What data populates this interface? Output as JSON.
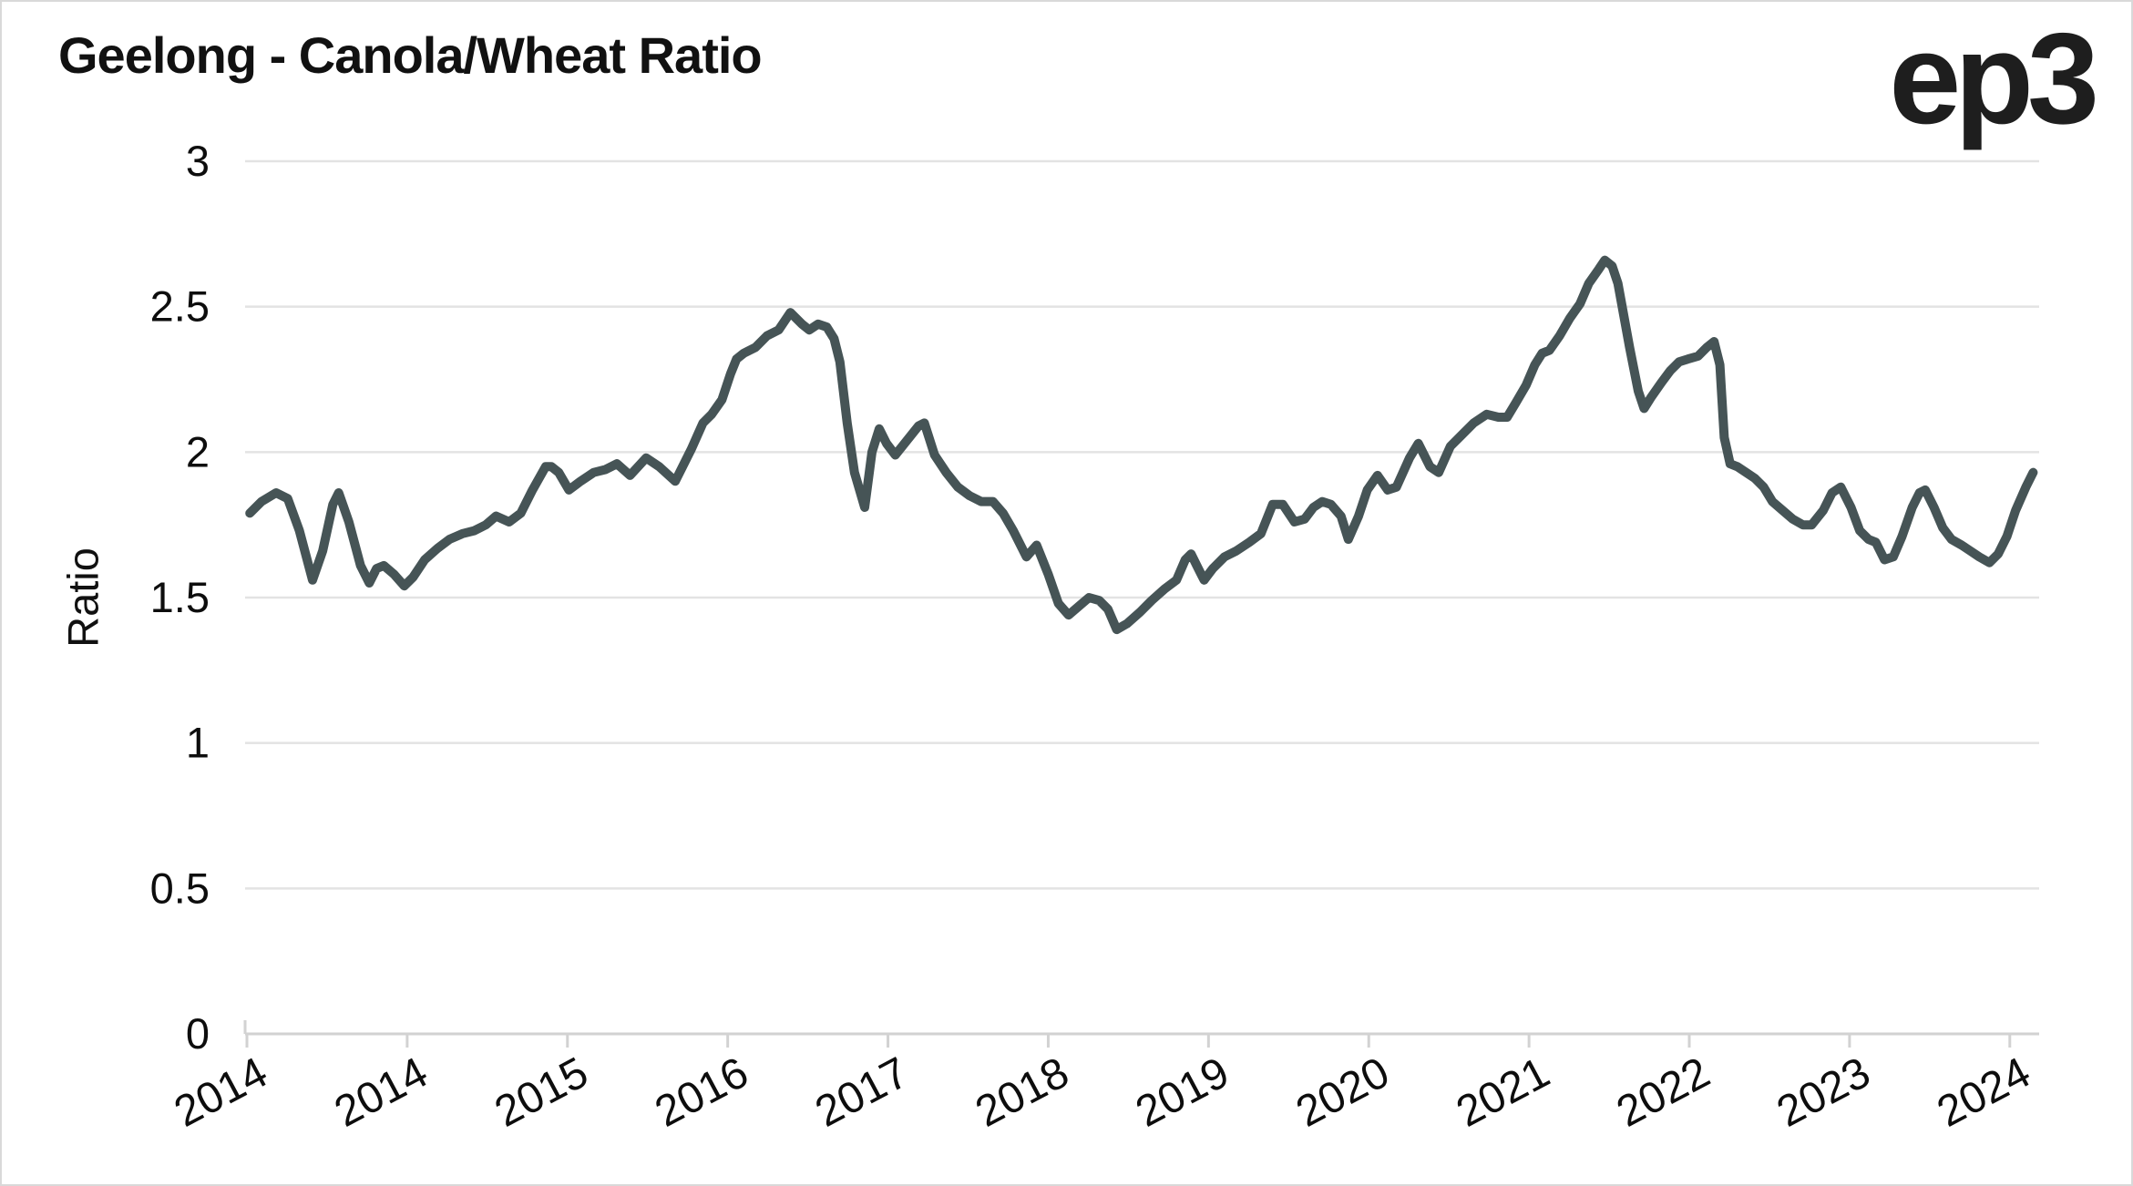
{
  "header": {
    "title": "Geelong - Canola/Wheat Ratio",
    "logo": "ep3"
  },
  "colors": {
    "background": "#ffffff",
    "frame_border": "#d9d9d9",
    "title_text": "#111111",
    "tick_text": "#0d0d0d",
    "gridline": "#e3e3e3",
    "axis_line": "#d2d2d2",
    "line": "#465456"
  },
  "chart_data": {
    "type": "line",
    "title": "Geelong - Canola/Wheat Ratio",
    "xlabel": "",
    "ylabel": "Ratio",
    "ylim": [
      0,
      3
    ],
    "grid": true,
    "legend": false,
    "line_color": "#465456",
    "line_width": 10,
    "y_ticks": [
      0,
      0.5,
      1,
      1.5,
      2,
      2.5,
      3
    ],
    "y_tick_labels": [
      "0",
      "0.5",
      "1",
      "1.5",
      "2",
      "2.5",
      "3"
    ],
    "x_tick_positions": [
      0,
      11,
      22,
      33,
      44,
      55,
      66,
      77,
      88,
      99,
      110,
      121
    ],
    "x_tick_labels": [
      "2014",
      "2014",
      "2015",
      "2016",
      "2017",
      "2018",
      "2019",
      "2020",
      "2021",
      "2022",
      "2023",
      "2024"
    ],
    "x_unit": "months from start of series (monthly ratio samples)",
    "series": [
      {
        "name": "Canola/Wheat Ratio",
        "points": [
          [
            0.2,
            1.79
          ],
          [
            1.0,
            1.83
          ],
          [
            2.0,
            1.86
          ],
          [
            2.8,
            1.84
          ],
          [
            3.6,
            1.73
          ],
          [
            4.5,
            1.56
          ],
          [
            5.2,
            1.66
          ],
          [
            5.9,
            1.82
          ],
          [
            6.3,
            1.86
          ],
          [
            7.0,
            1.76
          ],
          [
            7.8,
            1.61
          ],
          [
            8.4,
            1.55
          ],
          [
            8.9,
            1.6
          ],
          [
            9.4,
            1.61
          ],
          [
            10.1,
            1.58
          ],
          [
            10.8,
            1.54
          ],
          [
            11.4,
            1.57
          ],
          [
            12.2,
            1.63
          ],
          [
            13.1,
            1.67
          ],
          [
            13.9,
            1.7
          ],
          [
            14.8,
            1.72
          ],
          [
            15.6,
            1.73
          ],
          [
            16.4,
            1.75
          ],
          [
            17.1,
            1.78
          ],
          [
            18.0,
            1.76
          ],
          [
            18.8,
            1.79
          ],
          [
            19.6,
            1.87
          ],
          [
            20.5,
            1.95
          ],
          [
            20.9,
            1.95
          ],
          [
            21.4,
            1.93
          ],
          [
            22.1,
            1.87
          ],
          [
            22.9,
            1.9
          ],
          [
            23.8,
            1.93
          ],
          [
            24.6,
            1.94
          ],
          [
            25.4,
            1.96
          ],
          [
            26.3,
            1.92
          ],
          [
            27.4,
            1.98
          ],
          [
            28.3,
            1.95
          ],
          [
            29.4,
            1.9
          ],
          [
            30.5,
            2.01
          ],
          [
            31.3,
            2.1
          ],
          [
            31.9,
            2.13
          ],
          [
            32.6,
            2.18
          ],
          [
            33.2,
            2.27
          ],
          [
            33.6,
            2.32
          ],
          [
            34.1,
            2.34
          ],
          [
            34.9,
            2.36
          ],
          [
            35.7,
            2.4
          ],
          [
            36.5,
            2.42
          ],
          [
            37.3,
            2.48
          ],
          [
            38.1,
            2.44
          ],
          [
            38.6,
            2.42
          ],
          [
            39.2,
            2.44
          ],
          [
            39.8,
            2.43
          ],
          [
            40.3,
            2.39
          ],
          [
            40.7,
            2.31
          ],
          [
            41.2,
            2.1
          ],
          [
            41.7,
            1.93
          ],
          [
            42.4,
            1.81
          ],
          [
            42.9,
            2.0
          ],
          [
            43.4,
            2.08
          ],
          [
            43.9,
            2.03
          ],
          [
            44.5,
            1.99
          ],
          [
            45.3,
            2.04
          ],
          [
            46.1,
            2.09
          ],
          [
            46.5,
            2.1
          ],
          [
            47.2,
            1.99
          ],
          [
            48.0,
            1.93
          ],
          [
            48.8,
            1.88
          ],
          [
            49.6,
            1.85
          ],
          [
            50.4,
            1.83
          ],
          [
            51.2,
            1.83
          ],
          [
            51.9,
            1.79
          ],
          [
            52.6,
            1.73
          ],
          [
            53.5,
            1.64
          ],
          [
            54.2,
            1.68
          ],
          [
            55.0,
            1.58
          ],
          [
            55.7,
            1.48
          ],
          [
            56.4,
            1.44
          ],
          [
            57.1,
            1.47
          ],
          [
            57.8,
            1.5
          ],
          [
            58.5,
            1.49
          ],
          [
            59.1,
            1.46
          ],
          [
            59.7,
            1.39
          ],
          [
            60.4,
            1.41
          ],
          [
            61.3,
            1.45
          ],
          [
            62.1,
            1.49
          ],
          [
            63.0,
            1.53
          ],
          [
            63.8,
            1.56
          ],
          [
            64.4,
            1.63
          ],
          [
            64.8,
            1.65
          ],
          [
            65.3,
            1.6
          ],
          [
            65.7,
            1.56
          ],
          [
            66.3,
            1.6
          ],
          [
            67.1,
            1.64
          ],
          [
            67.9,
            1.66
          ],
          [
            68.8,
            1.69
          ],
          [
            69.6,
            1.72
          ],
          [
            70.4,
            1.82
          ],
          [
            71.1,
            1.82
          ],
          [
            71.9,
            1.76
          ],
          [
            72.6,
            1.77
          ],
          [
            73.2,
            1.81
          ],
          [
            73.8,
            1.83
          ],
          [
            74.4,
            1.82
          ],
          [
            75.1,
            1.78
          ],
          [
            75.6,
            1.7
          ],
          [
            76.3,
            1.78
          ],
          [
            76.9,
            1.87
          ],
          [
            77.6,
            1.92
          ],
          [
            78.3,
            1.87
          ],
          [
            78.9,
            1.88
          ],
          [
            79.8,
            1.98
          ],
          [
            80.4,
            2.03
          ],
          [
            81.2,
            1.95
          ],
          [
            81.8,
            1.93
          ],
          [
            82.6,
            2.02
          ],
          [
            83.4,
            2.06
          ],
          [
            84.2,
            2.1
          ],
          [
            85.1,
            2.13
          ],
          [
            85.9,
            2.12
          ],
          [
            86.5,
            2.12
          ],
          [
            87.1,
            2.17
          ],
          [
            87.8,
            2.23
          ],
          [
            88.4,
            2.3
          ],
          [
            88.9,
            2.34
          ],
          [
            89.4,
            2.35
          ],
          [
            90.1,
            2.4
          ],
          [
            90.8,
            2.46
          ],
          [
            91.5,
            2.51
          ],
          [
            92.1,
            2.58
          ],
          [
            92.8,
            2.63
          ],
          [
            93.2,
            2.66
          ],
          [
            93.7,
            2.64
          ],
          [
            94.1,
            2.58
          ],
          [
            94.9,
            2.36
          ],
          [
            95.5,
            2.21
          ],
          [
            95.9,
            2.15
          ],
          [
            96.4,
            2.19
          ],
          [
            97.1,
            2.24
          ],
          [
            97.7,
            2.28
          ],
          [
            98.3,
            2.31
          ],
          [
            98.9,
            2.32
          ],
          [
            99.6,
            2.33
          ],
          [
            100.2,
            2.36
          ],
          [
            100.7,
            2.38
          ],
          [
            101.1,
            2.3
          ],
          [
            101.4,
            2.05
          ],
          [
            101.8,
            1.96
          ],
          [
            102.3,
            1.95
          ],
          [
            102.9,
            1.93
          ],
          [
            103.5,
            1.91
          ],
          [
            104.1,
            1.88
          ],
          [
            104.7,
            1.83
          ],
          [
            105.4,
            1.8
          ],
          [
            106.1,
            1.77
          ],
          [
            106.8,
            1.75
          ],
          [
            107.4,
            1.75
          ],
          [
            108.2,
            1.8
          ],
          [
            108.8,
            1.86
          ],
          [
            109.4,
            1.88
          ],
          [
            110.1,
            1.81
          ],
          [
            110.7,
            1.73
          ],
          [
            111.3,
            1.7
          ],
          [
            111.8,
            1.69
          ],
          [
            112.4,
            1.63
          ],
          [
            113.0,
            1.64
          ],
          [
            113.6,
            1.71
          ],
          [
            114.3,
            1.81
          ],
          [
            114.8,
            1.86
          ],
          [
            115.2,
            1.87
          ],
          [
            115.8,
            1.81
          ],
          [
            116.4,
            1.74
          ],
          [
            117.0,
            1.7
          ],
          [
            117.7,
            1.68
          ],
          [
            118.3,
            1.66
          ],
          [
            118.9,
            1.64
          ],
          [
            119.6,
            1.62
          ],
          [
            120.2,
            1.65
          ],
          [
            120.8,
            1.71
          ],
          [
            121.4,
            1.8
          ],
          [
            122.1,
            1.88
          ],
          [
            122.6,
            1.93
          ]
        ]
      }
    ]
  }
}
